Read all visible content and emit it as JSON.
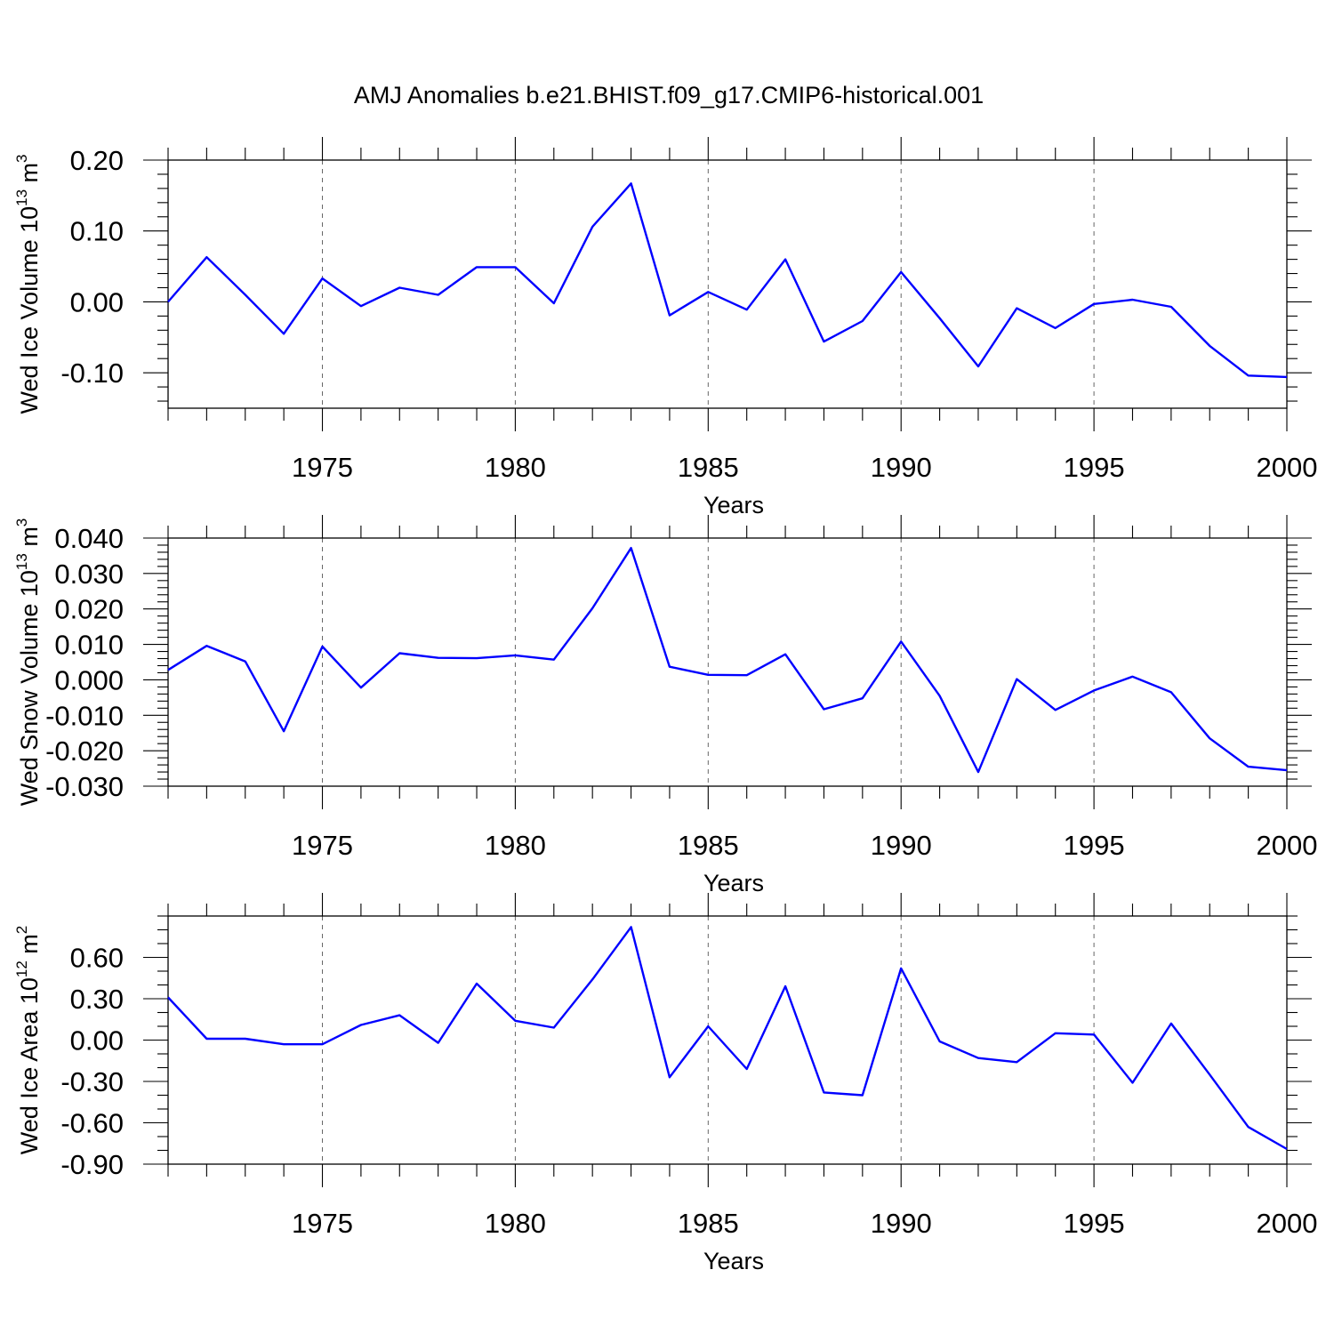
{
  "figure": {
    "title": "AMJ Anomalies b.e21.BHIST.f09_g17.CMIP6-historical.001",
    "line_color": "#0000ff"
  },
  "chart_data": [
    {
      "type": "line",
      "ylabel": "Wed Ice Volume 10",
      "ylabel_exp": "13",
      "ylabel_unit": " m",
      "ylabel_unit_exp": "3",
      "xlabel": "Years",
      "xlim": [
        1971,
        2000
      ],
      "ylim": [
        -0.15,
        0.2
      ],
      "yticks": [
        0.2,
        0.1,
        0.0,
        -0.1
      ],
      "ytick_labels": [
        "0.20",
        "0.10",
        "0.00",
        "-0.10"
      ],
      "yminor_step": 0.02,
      "xticks": [
        1975,
        1980,
        1985,
        1990,
        1995,
        2000
      ],
      "xtick_labels": [
        "1975",
        "1980",
        "1985",
        "1990",
        "1995",
        "2000"
      ],
      "x": [
        1971,
        1972,
        1973,
        1974,
        1975,
        1976,
        1977,
        1978,
        1979,
        1980,
        1981,
        1982,
        1983,
        1984,
        1985,
        1986,
        1987,
        1988,
        1989,
        1990,
        1991,
        1992,
        1993,
        1994,
        1995,
        1996,
        1997,
        1998,
        1999,
        2000
      ],
      "series": [
        {
          "values": [
            0.0,
            0.063,
            0.01,
            -0.045,
            0.033,
            -0.006,
            0.02,
            0.01,
            0.049,
            0.049,
            -0.002,
            0.106,
            0.167,
            -0.019,
            0.014,
            -0.011,
            0.06,
            -0.056,
            -0.027,
            0.042,
            -0.023,
            -0.091,
            -0.009,
            -0.037,
            -0.003,
            0.003,
            -0.007,
            -0.062,
            -0.104,
            -0.106
          ]
        }
      ]
    },
    {
      "type": "line",
      "ylabel": "Wed Snow Volume 10",
      "ylabel_exp": "13",
      "ylabel_unit": " m",
      "ylabel_unit_exp": "3",
      "xlabel": "Years",
      "xlim": [
        1971,
        2000
      ],
      "ylim": [
        -0.03,
        0.04
      ],
      "yticks": [
        0.04,
        0.03,
        0.02,
        0.01,
        0.0,
        -0.01,
        -0.02,
        -0.03
      ],
      "ytick_labels": [
        "0.040",
        "0.030",
        "0.020",
        "0.010",
        "0.000",
        "-0.010",
        "-0.020",
        "-0.030"
      ],
      "yminor_step": 0.002,
      "xticks": [
        1975,
        1980,
        1985,
        1990,
        1995,
        2000
      ],
      "xtick_labels": [
        "1975",
        "1980",
        "1985",
        "1990",
        "1995",
        "2000"
      ],
      "x": [
        1971,
        1972,
        1973,
        1974,
        1975,
        1976,
        1977,
        1978,
        1979,
        1980,
        1981,
        1982,
        1983,
        1984,
        1985,
        1986,
        1987,
        1988,
        1989,
        1990,
        1991,
        1992,
        1993,
        1994,
        1995,
        1996,
        1997,
        1998,
        1999,
        2000
      ],
      "series": [
        {
          "values": [
            0.0028,
            0.0096,
            0.0052,
            -0.0145,
            0.0094,
            -0.0022,
            0.0075,
            0.0062,
            0.0061,
            0.0069,
            0.0057,
            0.0202,
            0.0372,
            0.0037,
            0.0014,
            0.0013,
            0.0072,
            -0.0083,
            -0.0052,
            0.0108,
            -0.0045,
            -0.026,
            0.0002,
            -0.0085,
            -0.003,
            0.0009,
            -0.0035,
            -0.0165,
            -0.0245,
            -0.0255
          ]
        }
      ]
    },
    {
      "type": "line",
      "ylabel": "Wed Ice Area 10",
      "ylabel_exp": "12",
      "ylabel_unit": " m",
      "ylabel_unit_exp": "2",
      "xlabel": "Years",
      "xlim": [
        1971,
        2000
      ],
      "ylim": [
        -0.9,
        0.9
      ],
      "yticks": [
        0.6,
        0.3,
        0.0,
        -0.3,
        -0.6,
        -0.9
      ],
      "ytick_labels": [
        "0.60",
        "0.30",
        "0.00",
        "-0.30",
        "-0.60",
        "-0.90"
      ],
      "yminor_step": 0.1,
      "xticks": [
        1975,
        1980,
        1985,
        1990,
        1995,
        2000
      ],
      "xtick_labels": [
        "1975",
        "1980",
        "1985",
        "1990",
        "1995",
        "2000"
      ],
      "x": [
        1971,
        1972,
        1973,
        1974,
        1975,
        1976,
        1977,
        1978,
        1979,
        1980,
        1981,
        1982,
        1983,
        1984,
        1985,
        1986,
        1987,
        1988,
        1989,
        1990,
        1991,
        1992,
        1993,
        1994,
        1995,
        1996,
        1997,
        1998,
        1999,
        2000
      ],
      "series": [
        {
          "values": [
            0.31,
            0.01,
            0.01,
            -0.03,
            -0.03,
            0.11,
            0.18,
            -0.02,
            0.41,
            0.14,
            0.09,
            0.44,
            0.82,
            -0.27,
            0.1,
            -0.21,
            0.39,
            -0.38,
            -0.4,
            0.52,
            -0.01,
            -0.13,
            -0.16,
            0.05,
            0.04,
            -0.31,
            0.12,
            -0.25,
            -0.63,
            -0.79
          ]
        }
      ]
    }
  ]
}
